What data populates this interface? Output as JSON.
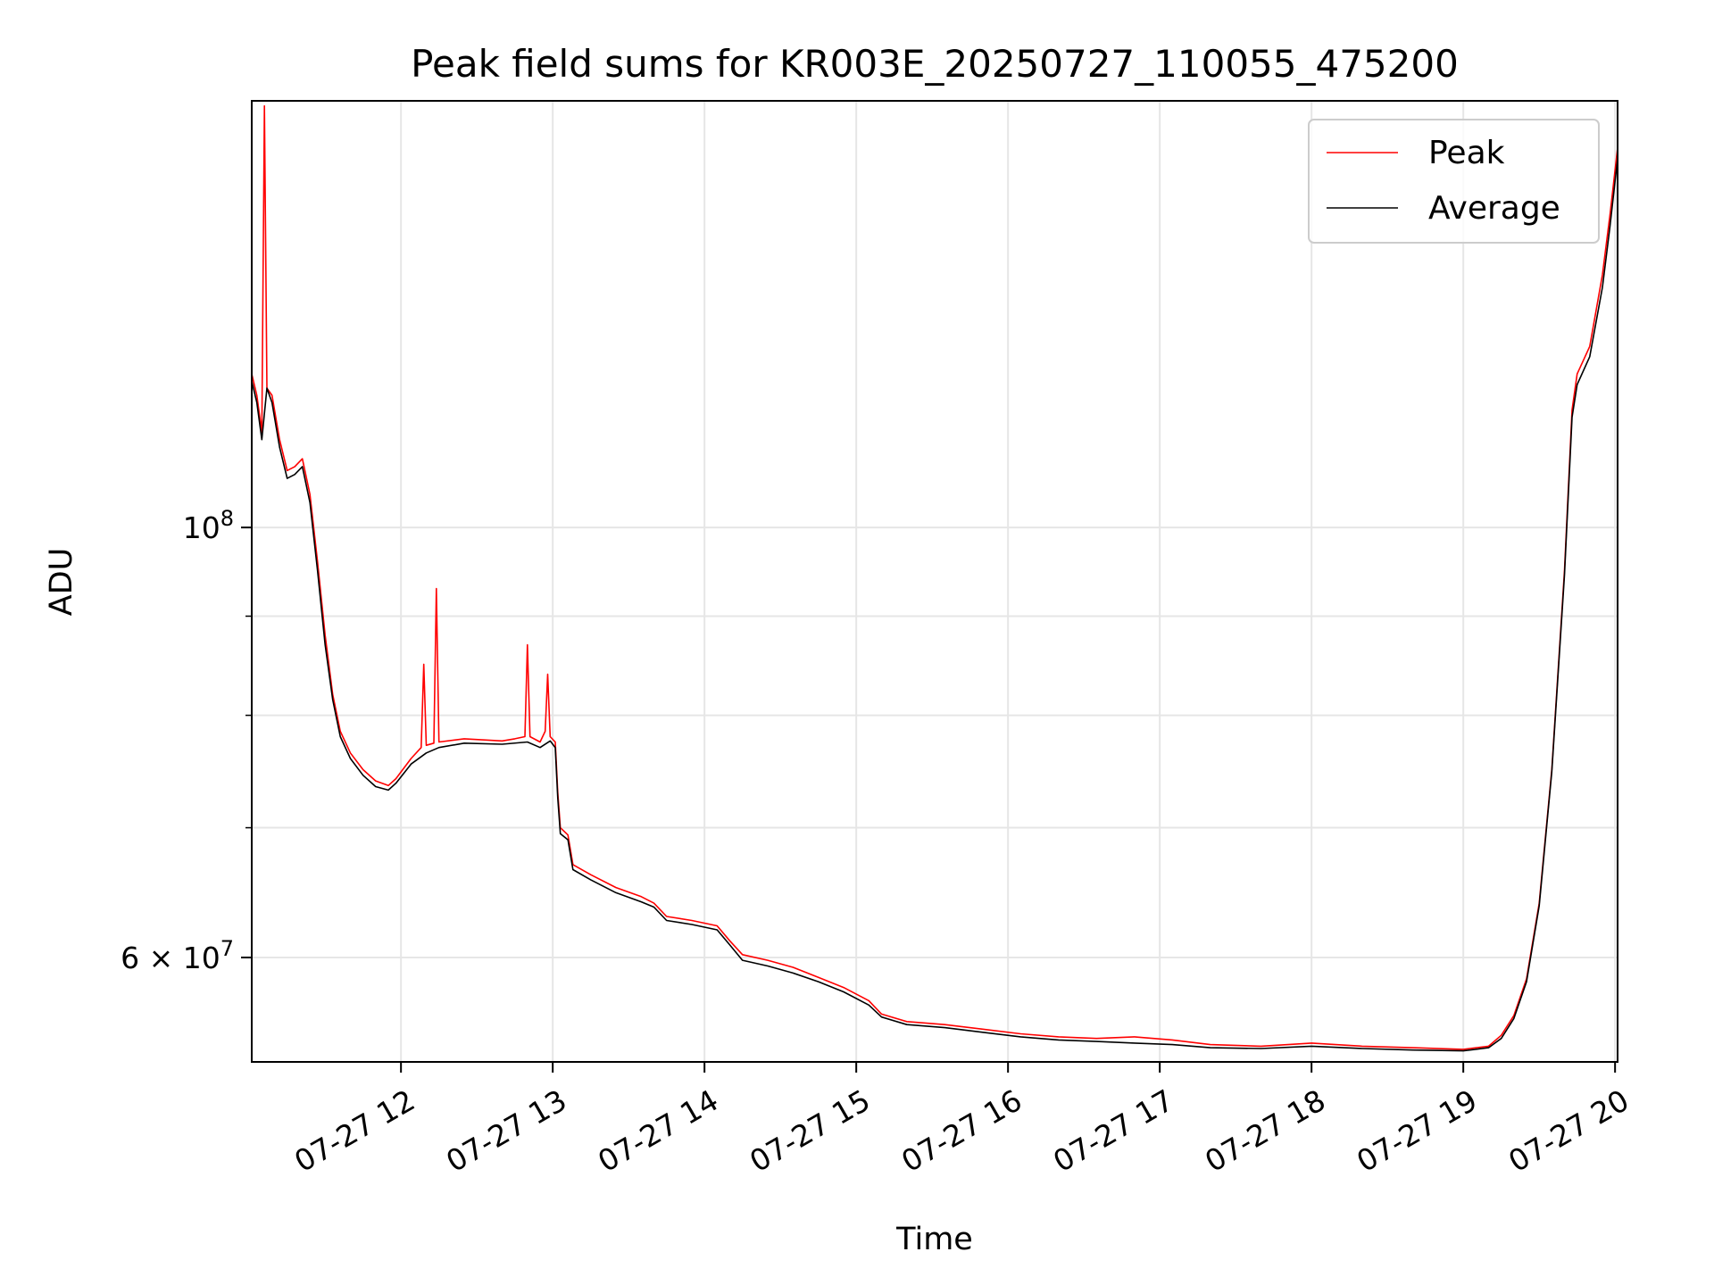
{
  "chart_data": {
    "type": "line",
    "title": "Peak field sums for KR003E_20250727_110055_475200",
    "xlabel": "Time",
    "ylabel": "ADU",
    "yscale": "log",
    "grid": true,
    "legend_position": "top-right",
    "xlim": [
      "2025-07-27 11:01",
      "2025-07-27 20:01"
    ],
    "ylim": [
      53000000,
      166000000
    ],
    "x_ticks": [
      {
        "value": "2025-07-27 12:00",
        "label": "07-27 12"
      },
      {
        "value": "2025-07-27 13:00",
        "label": "07-27 13"
      },
      {
        "value": "2025-07-27 14:00",
        "label": "07-27 14"
      },
      {
        "value": "2025-07-27 15:00",
        "label": "07-27 15"
      },
      {
        "value": "2025-07-27 16:00",
        "label": "07-27 16"
      },
      {
        "value": "2025-07-27 17:00",
        "label": "07-27 17"
      },
      {
        "value": "2025-07-27 18:00",
        "label": "07-27 18"
      },
      {
        "value": "2025-07-27 19:00",
        "label": "07-27 19"
      },
      {
        "value": "2025-07-27 20:00",
        "label": "07-27 20"
      }
    ],
    "y_major_ticks": [
      {
        "value": 60000000,
        "label": "6 × 10",
        "exp": "7"
      },
      {
        "value": 100000000,
        "label": "10",
        "exp": "8"
      }
    ],
    "y_minor_ticks": [
      60000000,
      70000000,
      80000000,
      90000000
    ],
    "series": [
      {
        "name": "Peak",
        "color": "#ff0000",
        "points": [
          [
            "2025-07-27 11:01",
            120000000
          ],
          [
            "2025-07-27 11:03",
            117000000
          ],
          [
            "2025-07-27 11:05",
            112000000
          ],
          [
            "2025-07-27 11:06",
            165000000
          ],
          [
            "2025-07-27 11:07",
            118000000
          ],
          [
            "2025-07-27 11:09",
            117000000
          ],
          [
            "2025-07-27 11:12",
            111000000
          ],
          [
            "2025-07-27 11:15",
            107000000
          ],
          [
            "2025-07-27 11:18",
            107500000
          ],
          [
            "2025-07-27 11:21",
            108500000
          ],
          [
            "2025-07-27 11:24",
            104000000
          ],
          [
            "2025-07-27 11:27",
            96000000
          ],
          [
            "2025-07-27 11:30",
            88000000
          ],
          [
            "2025-07-27 11:33",
            82000000
          ],
          [
            "2025-07-27 11:36",
            78500000
          ],
          [
            "2025-07-27 11:40",
            76500000
          ],
          [
            "2025-07-27 11:45",
            75000000
          ],
          [
            "2025-07-27 11:50",
            74000000
          ],
          [
            "2025-07-27 11:55",
            73600000
          ],
          [
            "2025-07-27 11:58",
            74200000
          ],
          [
            "2025-07-27 12:04",
            76000000
          ],
          [
            "2025-07-27 12:08",
            77000000
          ],
          [
            "2025-07-27 12:09",
            85000000
          ],
          [
            "2025-07-27 12:10",
            77200000
          ],
          [
            "2025-07-27 12:13",
            77400000
          ],
          [
            "2025-07-27 12:14",
            93000000
          ],
          [
            "2025-07-27 12:15",
            77500000
          ],
          [
            "2025-07-27 12:25",
            77800000
          ],
          [
            "2025-07-27 12:40",
            77600000
          ],
          [
            "2025-07-27 12:45",
            77800000
          ],
          [
            "2025-07-27 12:49",
            78000000
          ],
          [
            "2025-07-27 12:50",
            87000000
          ],
          [
            "2025-07-27 12:51",
            78000000
          ],
          [
            "2025-07-27 12:55",
            77500000
          ],
          [
            "2025-07-27 12:57",
            78500000
          ],
          [
            "2025-07-27 12:58",
            84000000
          ],
          [
            "2025-07-27 12:59",
            78000000
          ],
          [
            "2025-07-27 13:01",
            77500000
          ],
          [
            "2025-07-27 13:02",
            73000000
          ],
          [
            "2025-07-27 13:03",
            70000000
          ],
          [
            "2025-07-27 13:06",
            69400000
          ],
          [
            "2025-07-27 13:08",
            67000000
          ],
          [
            "2025-07-27 13:15",
            66200000
          ],
          [
            "2025-07-27 13:25",
            65200000
          ],
          [
            "2025-07-27 13:35",
            64500000
          ],
          [
            "2025-07-27 13:40",
            64000000
          ],
          [
            "2025-07-27 13:45",
            63000000
          ],
          [
            "2025-07-27 13:55",
            62700000
          ],
          [
            "2025-07-27 14:05",
            62300000
          ],
          [
            "2025-07-27 14:10",
            61200000
          ],
          [
            "2025-07-27 14:15",
            60200000
          ],
          [
            "2025-07-27 14:25",
            59800000
          ],
          [
            "2025-07-27 14:35",
            59300000
          ],
          [
            "2025-07-27 14:45",
            58600000
          ],
          [
            "2025-07-27 14:55",
            57900000
          ],
          [
            "2025-07-27 15:05",
            57000000
          ],
          [
            "2025-07-27 15:10",
            56100000
          ],
          [
            "2025-07-27 15:20",
            55600000
          ],
          [
            "2025-07-27 15:35",
            55400000
          ],
          [
            "2025-07-27 15:50",
            55100000
          ],
          [
            "2025-07-27 16:05",
            54800000
          ],
          [
            "2025-07-27 16:20",
            54600000
          ],
          [
            "2025-07-27 16:35",
            54500000
          ],
          [
            "2025-07-27 16:50",
            54600000
          ],
          [
            "2025-07-27 17:05",
            54400000
          ],
          [
            "2025-07-27 17:20",
            54100000
          ],
          [
            "2025-07-27 17:40",
            54000000
          ],
          [
            "2025-07-27 18:00",
            54200000
          ],
          [
            "2025-07-27 18:20",
            54000000
          ],
          [
            "2025-07-27 18:40",
            53900000
          ],
          [
            "2025-07-27 19:00",
            53800000
          ],
          [
            "2025-07-27 19:10",
            54000000
          ],
          [
            "2025-07-27 19:15",
            54700000
          ],
          [
            "2025-07-27 19:20",
            56000000
          ],
          [
            "2025-07-27 19:25",
            58500000
          ],
          [
            "2025-07-27 19:30",
            64000000
          ],
          [
            "2025-07-27 19:35",
            75000000
          ],
          [
            "2025-07-27 19:40",
            95000000
          ],
          [
            "2025-07-27 19:43",
            115000000
          ],
          [
            "2025-07-27 19:45",
            120000000
          ],
          [
            "2025-07-27 19:50",
            124000000
          ],
          [
            "2025-07-27 19:55",
            135000000
          ],
          [
            "2025-07-27 19:58",
            145000000
          ],
          [
            "2025-07-27 20:01",
            157000000
          ]
        ]
      },
      {
        "name": "Average",
        "color": "#000000",
        "points": [
          [
            "2025-07-27 11:01",
            119000000
          ],
          [
            "2025-07-27 11:03",
            116000000
          ],
          [
            "2025-07-27 11:05",
            111000000
          ],
          [
            "2025-07-27 11:07",
            118000000
          ],
          [
            "2025-07-27 11:09",
            116000000
          ],
          [
            "2025-07-27 11:12",
            110000000
          ],
          [
            "2025-07-27 11:15",
            106000000
          ],
          [
            "2025-07-27 11:18",
            106500000
          ],
          [
            "2025-07-27 11:21",
            107500000
          ],
          [
            "2025-07-27 11:24",
            103000000
          ],
          [
            "2025-07-27 11:27",
            95000000
          ],
          [
            "2025-07-27 11:30",
            87000000
          ],
          [
            "2025-07-27 11:33",
            81500000
          ],
          [
            "2025-07-27 11:36",
            78000000
          ],
          [
            "2025-07-27 11:40",
            76000000
          ],
          [
            "2025-07-27 11:45",
            74500000
          ],
          [
            "2025-07-27 11:50",
            73500000
          ],
          [
            "2025-07-27 11:55",
            73200000
          ],
          [
            "2025-07-27 11:58",
            73800000
          ],
          [
            "2025-07-27 12:04",
            75500000
          ],
          [
            "2025-07-27 12:10",
            76500000
          ],
          [
            "2025-07-27 12:15",
            77000000
          ],
          [
            "2025-07-27 12:25",
            77400000
          ],
          [
            "2025-07-27 12:40",
            77300000
          ],
          [
            "2025-07-27 12:50",
            77500000
          ],
          [
            "2025-07-27 12:55",
            77000000
          ],
          [
            "2025-07-27 12:59",
            77600000
          ],
          [
            "2025-07-27 13:01",
            77000000
          ],
          [
            "2025-07-27 13:02",
            72500000
          ],
          [
            "2025-07-27 13:03",
            69500000
          ],
          [
            "2025-07-27 13:06",
            69000000
          ],
          [
            "2025-07-27 13:08",
            66600000
          ],
          [
            "2025-07-27 13:15",
            65800000
          ],
          [
            "2025-07-27 13:25",
            64800000
          ],
          [
            "2025-07-27 13:35",
            64100000
          ],
          [
            "2025-07-27 13:40",
            63700000
          ],
          [
            "2025-07-27 13:45",
            62700000
          ],
          [
            "2025-07-27 13:55",
            62400000
          ],
          [
            "2025-07-27 14:05",
            62000000
          ],
          [
            "2025-07-27 14:10",
            60900000
          ],
          [
            "2025-07-27 14:15",
            59800000
          ],
          [
            "2025-07-27 14:25",
            59400000
          ],
          [
            "2025-07-27 14:35",
            58900000
          ],
          [
            "2025-07-27 14:45",
            58300000
          ],
          [
            "2025-07-27 14:55",
            57600000
          ],
          [
            "2025-07-27 15:05",
            56700000
          ],
          [
            "2025-07-27 15:10",
            55900000
          ],
          [
            "2025-07-27 15:20",
            55400000
          ],
          [
            "2025-07-27 15:35",
            55200000
          ],
          [
            "2025-07-27 15:50",
            54900000
          ],
          [
            "2025-07-27 16:05",
            54600000
          ],
          [
            "2025-07-27 16:20",
            54400000
          ],
          [
            "2025-07-27 16:35",
            54300000
          ],
          [
            "2025-07-27 16:50",
            54200000
          ],
          [
            "2025-07-27 17:05",
            54100000
          ],
          [
            "2025-07-27 17:20",
            53900000
          ],
          [
            "2025-07-27 17:40",
            53850000
          ],
          [
            "2025-07-27 18:00",
            54000000
          ],
          [
            "2025-07-27 18:20",
            53850000
          ],
          [
            "2025-07-27 18:40",
            53750000
          ],
          [
            "2025-07-27 19:00",
            53700000
          ],
          [
            "2025-07-27 19:10",
            53900000
          ],
          [
            "2025-07-27 19:15",
            54500000
          ],
          [
            "2025-07-27 19:20",
            55800000
          ],
          [
            "2025-07-27 19:25",
            58300000
          ],
          [
            "2025-07-27 19:30",
            63800000
          ],
          [
            "2025-07-27 19:35",
            74800000
          ],
          [
            "2025-07-27 19:40",
            94500000
          ],
          [
            "2025-07-27 19:43",
            114000000
          ],
          [
            "2025-07-27 19:45",
            118500000
          ],
          [
            "2025-07-27 19:50",
            122500000
          ],
          [
            "2025-07-27 19:55",
            133000000
          ],
          [
            "2025-07-27 19:58",
            143000000
          ],
          [
            "2025-07-27 20:01",
            155000000
          ]
        ]
      }
    ]
  }
}
